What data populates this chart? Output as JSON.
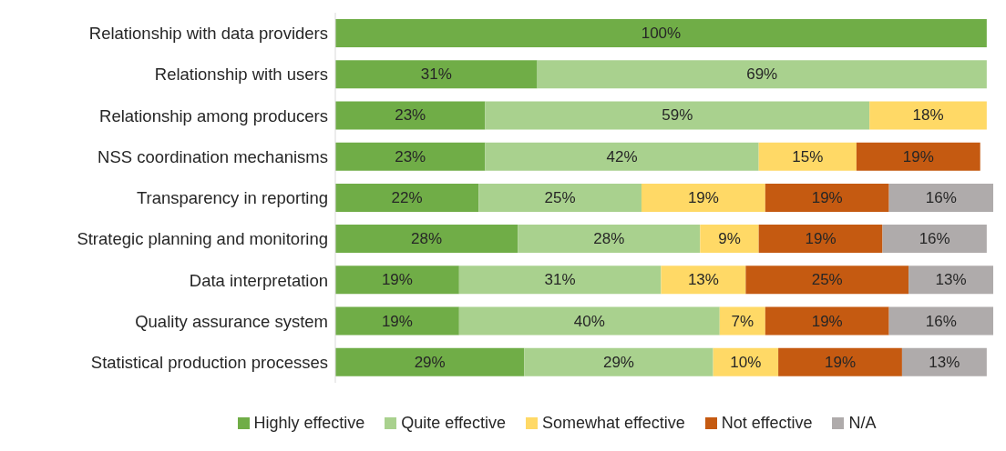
{
  "chart_data": {
    "type": "bar",
    "orientation": "horizontal",
    "stacked": true,
    "categories": [
      "Relationship with data providers",
      "Relationship with users",
      "Relationship among producers",
      "NSS coordination mechanisms",
      "Transparency in reporting",
      "Strategic planning and monitoring",
      "Data interpretation",
      "Quality assurance system",
      "Statistical production processes"
    ],
    "series": [
      {
        "name": "Highly effective",
        "color": "#70ad47",
        "values": [
          100,
          31,
          23,
          23,
          22,
          28,
          19,
          19,
          29
        ],
        "value_labels": [
          "100%",
          "31%",
          "23%",
          "23%",
          "22%",
          "28%",
          "19%",
          "19%",
          "29%"
        ]
      },
      {
        "name": "Quite effective",
        "color": "#a9d18e",
        "values": [
          null,
          69,
          59,
          42,
          25,
          28,
          31,
          40,
          29
        ],
        "value_labels": [
          null,
          "69%",
          "59%",
          "42%",
          "25%",
          "28%",
          "31%",
          "40%",
          "29%"
        ]
      },
      {
        "name": "Somewhat effective",
        "color": "#ffd966",
        "values": [
          null,
          null,
          18,
          15,
          19,
          9,
          13,
          7,
          10
        ],
        "value_labels": [
          null,
          null,
          "18%",
          "15%",
          "19%",
          "9%",
          "13%",
          "7%",
          "10%"
        ]
      },
      {
        "name": "Not effective",
        "color": "#c55a11",
        "values": [
          null,
          null,
          null,
          19,
          19,
          19,
          25,
          19,
          19
        ],
        "value_labels": [
          null,
          null,
          null,
          "19%",
          "19%",
          "19%",
          "25%",
          "19%",
          "19%"
        ]
      },
      {
        "name": "N/A",
        "color": "#afabab",
        "values": [
          null,
          null,
          null,
          null,
          16,
          16,
          13,
          16,
          13
        ],
        "value_labels": [
          null,
          null,
          null,
          null,
          "16%",
          "16%",
          "13%",
          "16%",
          "13%"
        ]
      }
    ],
    "tick_labels": "y",
    "legend": "bottom"
  }
}
